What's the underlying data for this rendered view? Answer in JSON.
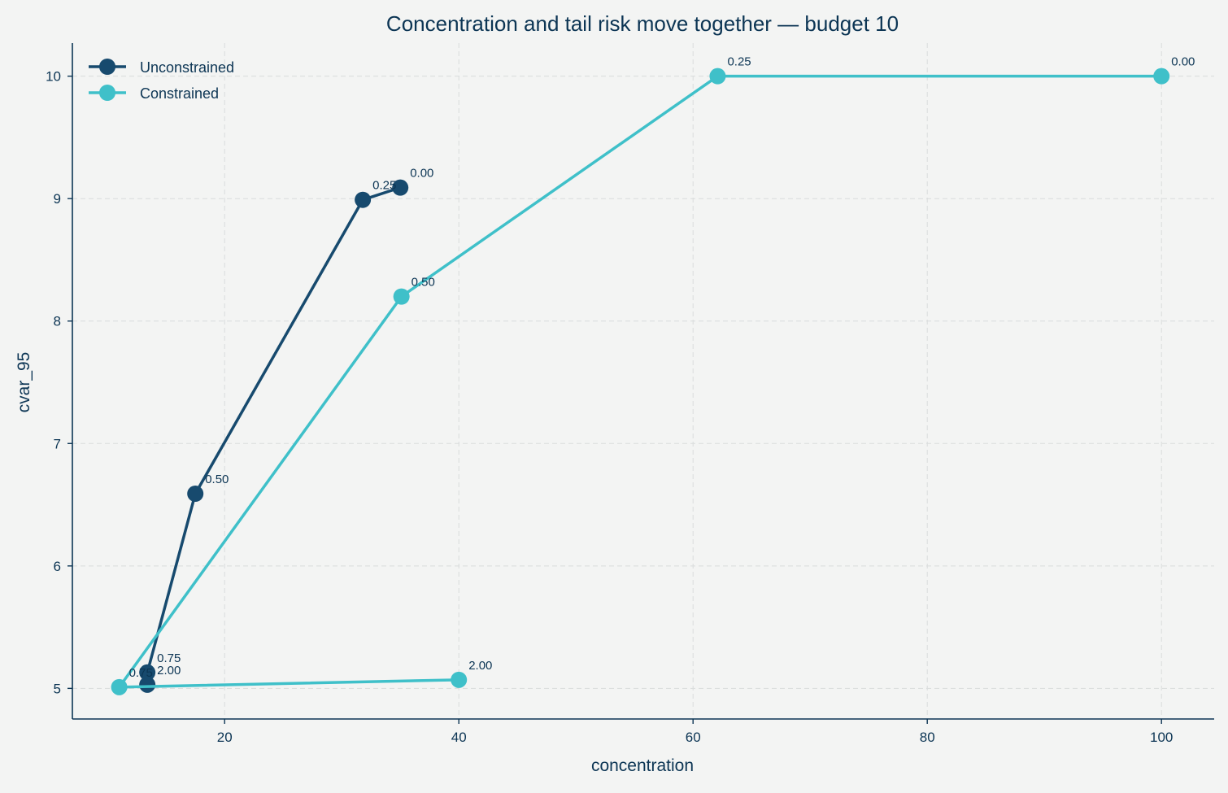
{
  "chart_data": {
    "type": "line",
    "title": "Concentration and tail risk move together — budget 10",
    "xlabel": "concentration",
    "ylabel": "cvar_95",
    "xlim": [
      7,
      104.5
    ],
    "ylim": [
      4.75,
      10.27
    ],
    "x_ticks": [
      20,
      40,
      60,
      80,
      100
    ],
    "y_ticks": [
      5,
      6,
      7,
      8,
      9,
      10
    ],
    "grid": true,
    "legend_position": "top-left",
    "series": [
      {
        "name": "Unconstrained",
        "color": "#174a6e",
        "points": [
          {
            "x": 35.0,
            "y": 9.09,
            "label": "0.00"
          },
          {
            "x": 31.8,
            "y": 8.99,
            "label": "0.25"
          },
          {
            "x": 17.5,
            "y": 6.59,
            "label": "0.50"
          },
          {
            "x": 13.4,
            "y": 5.13,
            "label": "0.75"
          },
          {
            "x": 13.4,
            "y": 5.03,
            "label": "2.00"
          }
        ]
      },
      {
        "name": "Constrained",
        "color": "#3fc0c9",
        "points": [
          {
            "x": 100.0,
            "y": 10.0,
            "label": "0.00"
          },
          {
            "x": 62.1,
            "y": 10.0,
            "label": "0.25"
          },
          {
            "x": 35.1,
            "y": 8.2,
            "label": "0.50"
          },
          {
            "x": 11.0,
            "y": 5.01,
            "label": "0.75"
          },
          {
            "x": 40.0,
            "y": 5.07,
            "label": "2.00"
          }
        ]
      }
    ]
  }
}
